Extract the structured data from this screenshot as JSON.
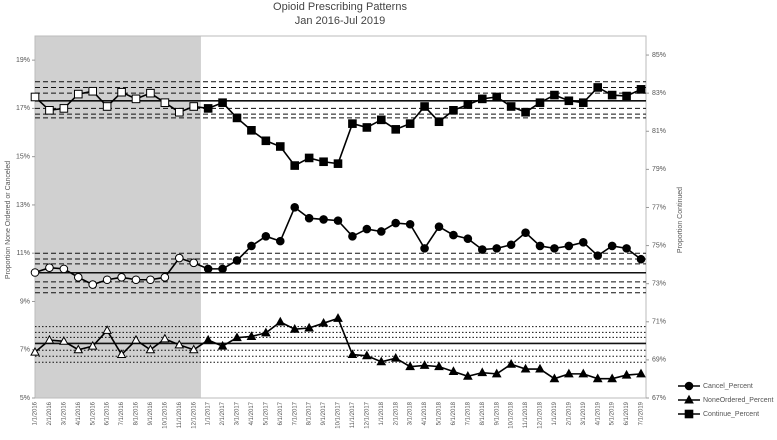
{
  "chart_data": {
    "type": "line",
    "title": "Opioid Prescribing Patterns",
    "subtitle": "Jan 2016-Jul 2019",
    "y_label": "Proportion None Ordered or Canceled",
    "y2_label": "Proportion Continued",
    "categories": [
      "1/1/2016",
      "2/1/2016",
      "3/1/2016",
      "4/1/2016",
      "5/1/2016",
      "6/1/2016",
      "7/1/2016",
      "8/1/2016",
      "9/1/2016",
      "10/1/2016",
      "11/1/2016",
      "12/1/2016",
      "1/1/2017",
      "2/1/2017",
      "3/1/2017",
      "4/1/2017",
      "5/1/2017",
      "6/1/2017",
      "7/1/2017",
      "8/1/2017",
      "9/1/2017",
      "10/1/2017",
      "11/1/2017",
      "12/1/2017",
      "1/1/2018",
      "2/1/2018",
      "3/1/2018",
      "4/1/2018",
      "5/1/2018",
      "6/1/2018",
      "7/1/2018",
      "8/1/2018",
      "9/1/2018",
      "10/1/2018",
      "11/1/2018",
      "12/1/2018",
      "1/1/2019",
      "2/1/2019",
      "3/1/2019",
      "4/1/2019",
      "5/1/2019",
      "6/1/2019",
      "7/1/2019"
    ],
    "shaded_range": [
      "1/1/2016",
      "12/1/2016"
    ],
    "ylim": [
      5,
      20
    ],
    "yticks": [
      {
        "value": 5,
        "label": "5%"
      },
      {
        "value": 7,
        "label": "7%"
      },
      {
        "value": 9,
        "label": "9%"
      },
      {
        "value": 11,
        "label": "11%"
      },
      {
        "value": 13,
        "label": "13%"
      },
      {
        "value": 15,
        "label": "15%"
      },
      {
        "value": 17,
        "label": "17%"
      },
      {
        "value": 19,
        "label": "19%"
      }
    ],
    "y2lim": [
      67,
      86
    ],
    "y2ticks": [
      {
        "value": 67,
        "label": "67%"
      },
      {
        "value": 69,
        "label": "69%"
      },
      {
        "value": 71,
        "label": "71%"
      },
      {
        "value": 73,
        "label": "73%"
      },
      {
        "value": 75,
        "label": "75%"
      },
      {
        "value": 77,
        "label": "77%"
      },
      {
        "value": 79,
        "label": "79%"
      },
      {
        "value": 81,
        "label": "81%"
      },
      {
        "value": 83,
        "label": "83%"
      },
      {
        "value": 85,
        "label": "85%"
      }
    ],
    "series": [
      {
        "name": "Cancel_Percent",
        "color": "#000000",
        "marker": "circle",
        "axis": "y",
        "values": [
          10.2,
          10.4,
          10.35,
          10.0,
          9.7,
          9.9,
          10.0,
          9.9,
          9.9,
          10.0,
          10.8,
          10.6,
          10.35,
          10.35,
          10.7,
          11.3,
          11.7,
          11.5,
          12.9,
          12.45,
          12.4,
          12.35,
          11.7,
          12.0,
          11.9,
          12.25,
          12.2,
          11.2,
          12.1,
          11.75,
          11.6,
          11.15,
          11.2,
          11.35,
          11.85,
          11.3,
          11.2,
          11.3,
          11.45,
          10.9,
          11.3,
          11.2,
          10.75
        ]
      },
      {
        "name": "NoneOrdered_Percent",
        "color": "#000000",
        "marker": "triangle",
        "axis": "y",
        "values": [
          6.9,
          7.4,
          7.35,
          7.0,
          7.15,
          7.8,
          6.8,
          7.4,
          7.0,
          7.45,
          7.2,
          7.0,
          7.4,
          7.15,
          7.5,
          7.55,
          7.7,
          8.15,
          7.85,
          7.9,
          8.1,
          8.3,
          6.8,
          6.75,
          6.5,
          6.65,
          6.3,
          6.35,
          6.3,
          6.1,
          5.9,
          6.05,
          6.0,
          6.4,
          6.2,
          6.2,
          5.8,
          6.0,
          6.0,
          5.8,
          5.8,
          5.95,
          6.0
        ]
      },
      {
        "name": "Continue_Percent",
        "color": "#000000",
        "marker": "square",
        "axis": "y2",
        "values": [
          82.8,
          82.1,
          82.2,
          82.95,
          83.1,
          82.3,
          83.05,
          82.7,
          83.0,
          82.5,
          82.0,
          82.3,
          82.2,
          82.5,
          81.7,
          81.05,
          80.5,
          80.2,
          79.2,
          79.6,
          79.4,
          79.3,
          81.4,
          81.2,
          81.6,
          81.1,
          81.4,
          82.3,
          81.5,
          82.1,
          82.4,
          82.7,
          82.8,
          82.3,
          82.0,
          82.5,
          82.9,
          82.6,
          82.5,
          83.3,
          82.9,
          82.85,
          83.2
        ]
      }
    ],
    "reference_lines": [
      {
        "value": 83.6,
        "axis": "y2",
        "style": "dashed"
      },
      {
        "value": 83.3,
        "axis": "y2",
        "style": "dashed"
      },
      {
        "value": 83.0,
        "axis": "y2",
        "style": "dashed"
      },
      {
        "value": 82.6,
        "axis": "y2",
        "style": "solid"
      },
      {
        "value": 82.2,
        "axis": "y2",
        "style": "dashed"
      },
      {
        "value": 81.9,
        "axis": "y2",
        "style": "dashed"
      },
      {
        "value": 81.7,
        "axis": "y2",
        "style": "dashed"
      },
      {
        "value": 11.0,
        "axis": "y",
        "style": "dashed"
      },
      {
        "value": 10.76,
        "axis": "y",
        "style": "dashed"
      },
      {
        "value": 10.56,
        "axis": "y",
        "style": "dashed"
      },
      {
        "value": 10.19,
        "axis": "y",
        "style": "solid"
      },
      {
        "value": 9.81,
        "axis": "y",
        "style": "dashed"
      },
      {
        "value": 9.57,
        "axis": "y",
        "style": "dashed"
      },
      {
        "value": 9.36,
        "axis": "y",
        "style": "dashed"
      },
      {
        "value": 7.96,
        "axis": "y",
        "style": "dotted"
      },
      {
        "value": 7.72,
        "axis": "y",
        "style": "dotted"
      },
      {
        "value": 7.51,
        "axis": "y",
        "style": "dotted"
      },
      {
        "value": 7.26,
        "axis": "y",
        "style": "solid"
      },
      {
        "value": 6.98,
        "axis": "y",
        "style": "dotted"
      },
      {
        "value": 6.73,
        "axis": "y",
        "style": "dotted"
      },
      {
        "value": 6.48,
        "axis": "y",
        "style": "dotted"
      }
    ],
    "legend": "bottom-right"
  }
}
